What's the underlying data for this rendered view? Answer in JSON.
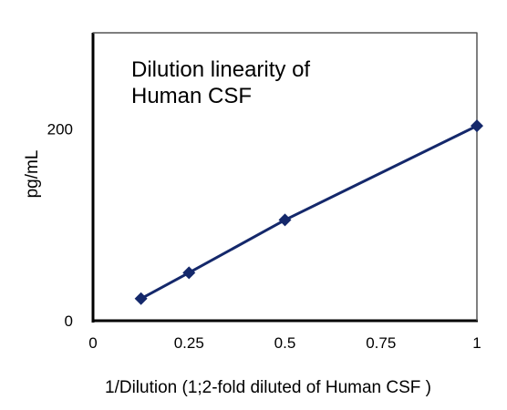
{
  "chart_data": {
    "type": "line",
    "title_lines": [
      "Dilution linearity of",
      "Human CSF"
    ],
    "xlabel": "1/Dilution (1;2-fold diluted of Human CSF )",
    "ylabel": "pg/mL",
    "xlim": [
      0,
      1
    ],
    "ylim": [
      0,
      300
    ],
    "x_ticks": [
      0,
      0.25,
      0.5,
      0.75,
      1
    ],
    "x_tick_labels": [
      "0",
      "0.25",
      "0.5",
      "0.75",
      "1"
    ],
    "y_ticks": [
      0,
      200
    ],
    "y_tick_labels": [
      "0",
      "200"
    ],
    "grid": false,
    "legend": "none",
    "series": [
      {
        "x": [
          0.125,
          0.25,
          0.5,
          1
        ],
        "y": [
          23,
          50,
          105,
          203
        ],
        "color": "#14286b",
        "marker": "diamond"
      }
    ]
  }
}
